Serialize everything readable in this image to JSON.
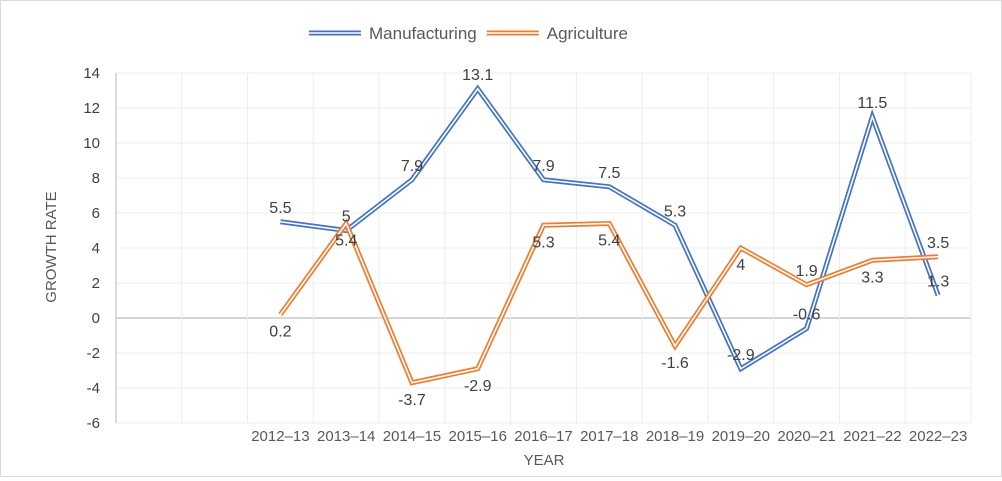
{
  "chart_data": {
    "type": "line",
    "title": "",
    "xlabel": "YEAR",
    "ylabel": "GROWTH RATE",
    "ylim": [
      -6,
      14
    ],
    "ytick_step": 2,
    "grid": true,
    "legend_position": "top-center",
    "categories": [
      "",
      "",
      "2012–13",
      "2013–14",
      "2014–15",
      "2015–16",
      "2016–17",
      "2017–18",
      "2018–19",
      "2019–20",
      "2020–21",
      "2021–22",
      "2022–23"
    ],
    "series": [
      {
        "name": "Manufacturing",
        "color": "#4472C4",
        "values": [
          null,
          null,
          5.5,
          5,
          7.9,
          13.1,
          7.9,
          7.5,
          5.3,
          -2.9,
          -0.6,
          11.5,
          1.3
        ]
      },
      {
        "name": "Agriculture",
        "color": "#ED7D31",
        "values": [
          null,
          null,
          0.2,
          5.4,
          -3.7,
          -2.9,
          5.3,
          5.4,
          -1.6,
          4,
          1.9,
          3.3,
          3.5
        ]
      }
    ]
  }
}
